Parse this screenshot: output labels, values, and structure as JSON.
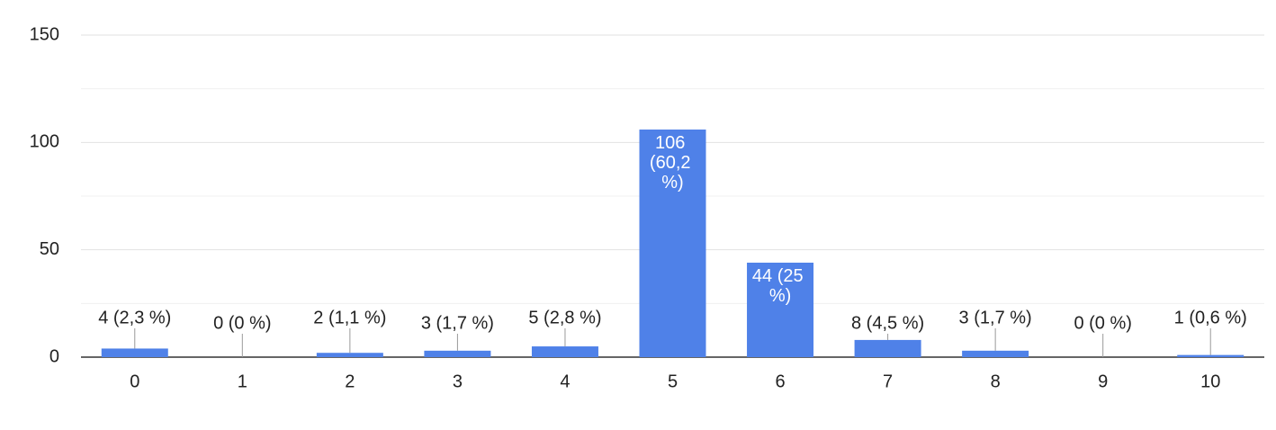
{
  "chart_data": {
    "type": "bar",
    "categories": [
      "0",
      "1",
      "2",
      "3",
      "4",
      "5",
      "6",
      "7",
      "8",
      "9",
      "10"
    ],
    "values": [
      4,
      0,
      2,
      3,
      5,
      106,
      44,
      8,
      3,
      0,
      1
    ],
    "value_labels": [
      "4 (2,3 %)",
      "0 (0 %)",
      "2 (1,1 %)",
      "3 (1,7 %)",
      "5 (2,8 %)",
      "106 (60,2 %)",
      "44 (25 %)",
      "8 (4,5 %)",
      "3 (1,7 %)",
      "0 (0 %)",
      "1 (0,6 %)"
    ],
    "color": "#4f81e8",
    "ylim": [
      0,
      150
    ],
    "yticks": [
      0,
      50,
      100,
      150
    ],
    "minor_yticks": [
      25,
      75,
      125
    ],
    "grid": true
  }
}
